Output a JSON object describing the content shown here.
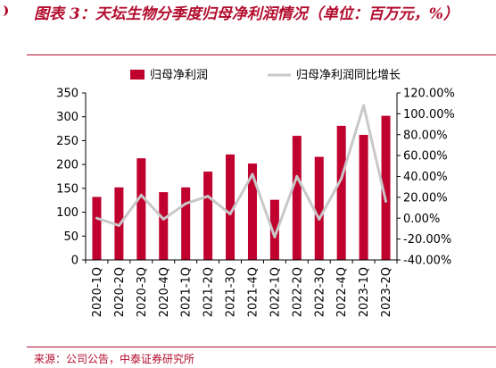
{
  "figure": {
    "title": "图表 3：天坛生物分季度归母净利润情况（单位：百万元，%）",
    "source": "来源：公司公告，中泰证券研究所"
  },
  "colors": {
    "bar": "#c0002e",
    "line": "#c8c8c8",
    "accent": "#b30d2e"
  },
  "chart_data": {
    "type": "bar",
    "categories": [
      "2020-1Q",
      "2020-2Q",
      "2020-3Q",
      "2020-4Q",
      "2021-1Q",
      "2021-2Q",
      "2021-3Q",
      "2021-4Q",
      "2022-1Q",
      "2022-2Q",
      "2022-3Q",
      "2022-4Q",
      "2023-1Q",
      "2023-2Q"
    ],
    "series": [
      {
        "name": "归母净利润",
        "type": "bar",
        "axis": "left",
        "values": [
          132,
          152,
          213,
          142,
          152,
          185,
          221,
          202,
          126,
          260,
          216,
          281,
          262,
          302
        ]
      },
      {
        "name": "归母净利润同比增长",
        "type": "line",
        "axis": "right",
        "values": [
          0.0,
          -7.0,
          22.0,
          -1.0,
          14.0,
          21.0,
          4.0,
          42.0,
          -18.0,
          40.0,
          -1.0,
          38.0,
          108.0,
          16.0
        ]
      }
    ],
    "yleft": {
      "min": 0,
      "max": 350,
      "ticks": [
        "0",
        "50",
        "100",
        "150",
        "200",
        "250",
        "300",
        "350"
      ]
    },
    "yright": {
      "min": -40,
      "max": 120,
      "ticks": [
        "-40.00%",
        "-20.00%",
        "0.00%",
        "20.00%",
        "40.00%",
        "60.00%",
        "80.00%",
        "100.00%",
        "120.00%"
      ]
    },
    "legend": "top",
    "grid": false
  }
}
